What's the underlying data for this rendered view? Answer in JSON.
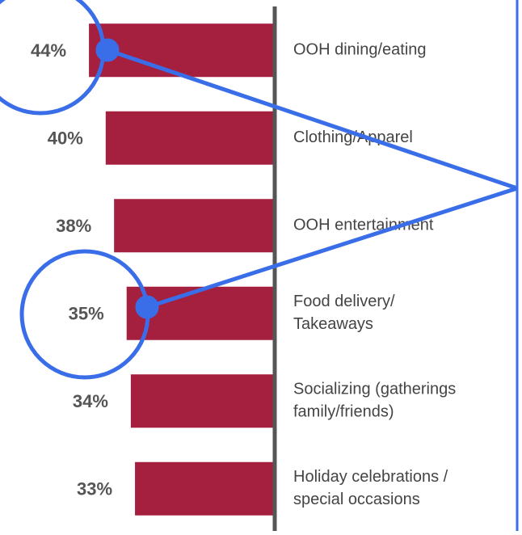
{
  "chart_data": {
    "type": "bar",
    "orientation": "horizontal",
    "categories": [
      "OOH dining/eating",
      "Clothing/Apparel",
      "OOH entertainment",
      "Food delivery/\nTakeaways",
      "Socializing (gatherings\nfamily/friends)",
      "Holiday celebrations /\nspecial occasions"
    ],
    "values": [
      44,
      40,
      38,
      35,
      34,
      33
    ],
    "value_labels": [
      "44%",
      "40%",
      "38%",
      "35%",
      "34%",
      "33%"
    ],
    "color": "#a51f3f"
  }
}
